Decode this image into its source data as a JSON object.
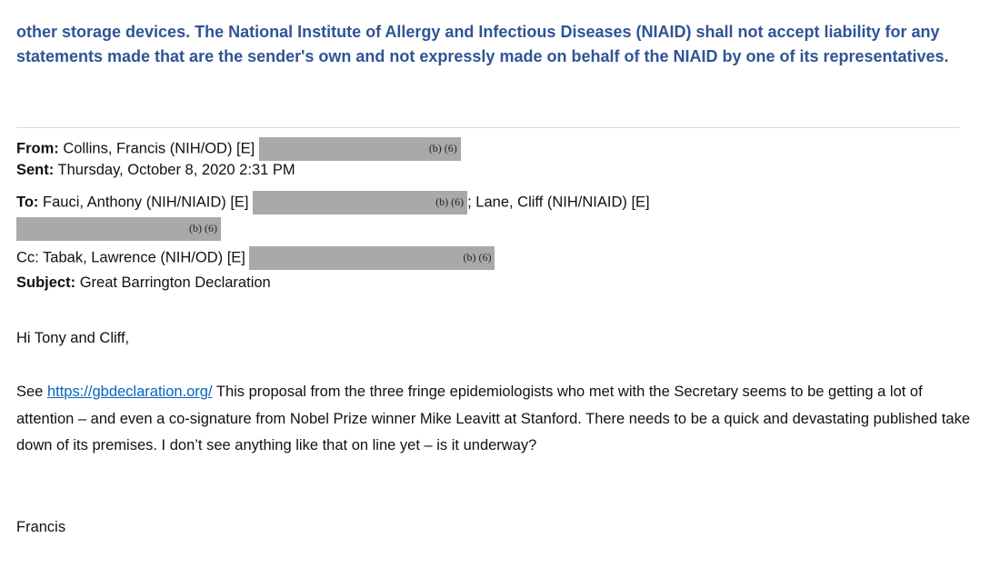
{
  "notice": "other storage devices.  The National Institute of Allergy and Infectious Diseases (NIAID) shall not accept liability for any statements made that are the sender's own and not expressly made on behalf of the NIAID by one of its representatives.",
  "header": {
    "from_label": "From:",
    "from_value": "Collins, Francis (NIH/OD) [E]",
    "sent_label": "Sent:",
    "sent_value": "Thursday, October 8, 2020 2:31 PM",
    "to_label": "To:",
    "to_value": "Fauci, Anthony (NIH/NIAID) [E]",
    "to_value2": "; Lane, Cliff (NIH/NIAID) [E]",
    "cc_label": "Cc:",
    "cc_value": "Tabak, Lawrence (NIH/OD) [E]",
    "subject_label": "Subject:",
    "subject_value": "Great Barrington Declaration",
    "redaction_code": "(b) (6)",
    "redaction_color": "#a9a9a9"
  },
  "body": {
    "greeting": "Hi Tony and Cliff,",
    "see": "See ",
    "link": "https://gbdeclaration.org/",
    "text": "  This proposal from the three fringe epidemiologists who met with the Secretary seems to be getting a lot of attention – and even a co-signature from Nobel Prize winner Mike Leavitt at Stanford.  There needs to be a quick and devastating published take down of its premises.  I don’t see anything like that on line yet – is it underway?",
    "signature": "Francis"
  },
  "colors": {
    "notice": "#2f5496",
    "link": "#0563c1"
  }
}
